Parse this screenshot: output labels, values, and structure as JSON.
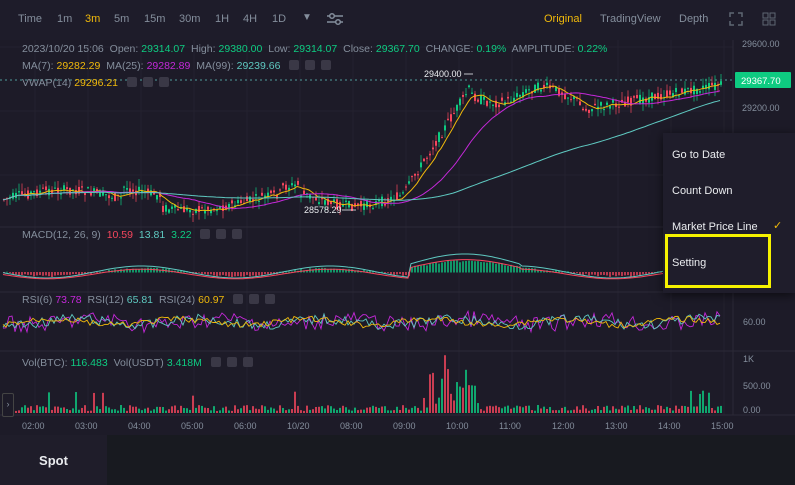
{
  "toolbar": {
    "timeframes": [
      "Time",
      "1m",
      "3m",
      "5m",
      "15m",
      "30m",
      "1H",
      "4H",
      "1D"
    ],
    "active_timeframe": "3m",
    "views": [
      "Original",
      "TradingView",
      "Depth"
    ],
    "active_view": "Original"
  },
  "ohlc": {
    "datetime": "2023/10/20 15:06",
    "open_label": "Open:",
    "open": "29314.07",
    "high_label": "High:",
    "high": "29380.00",
    "low_label": "Low:",
    "low": "29314.07",
    "close_label": "Close:",
    "close": "29367.70",
    "change_label": "CHANGE:",
    "change": "0.19%",
    "amplitude_label": "AMPLITUDE:",
    "amplitude": "0.22%"
  },
  "ma": {
    "ma7_label": "MA(7):",
    "ma7": "29282.29",
    "ma25_label": "MA(25):",
    "ma25": "29282.89",
    "ma99_label": "MA(99):",
    "ma99": "29239.66"
  },
  "vwap": {
    "label": "VWAP(14)",
    "value": "29296.21"
  },
  "macd": {
    "label": "MACD(12, 26, 9)",
    "v1": "10.59",
    "v2": "13.81",
    "v3": "3.22"
  },
  "rsi": {
    "l6": "RSI(6)",
    "v6": "73.78",
    "l12": "RSI(12)",
    "v12": "65.81",
    "l24": "RSI(24)",
    "v24": "60.97"
  },
  "vol": {
    "btc_label": "Vol(BTC):",
    "btc": "116.483",
    "usdt_label": "Vol(USDT)",
    "usdt": "3.418M"
  },
  "price_axis": {
    "ticks": [
      "29600.00",
      "29200.00"
    ],
    "current": "29367.70"
  },
  "annotations": {
    "high_mark": "29400.00",
    "low_mark": "28578.29"
  },
  "rsi_axis": {
    "tick": "60.00"
  },
  "vol_axis": {
    "ticks": [
      "1K",
      "500.00",
      "0.00"
    ]
  },
  "time_axis": {
    "ticks": [
      "02:00",
      "03:00",
      "04:00",
      "05:00",
      "06:00",
      "10/20",
      "08:00",
      "09:00",
      "10:00",
      "11:00",
      "12:00",
      "13:00",
      "14:00",
      "15:00"
    ]
  },
  "menu": {
    "items": [
      "Go to Date",
      "Count Down",
      "Market Price Line",
      "Setting"
    ]
  },
  "bottom": {
    "tab": "Spot"
  },
  "colors": {
    "up": "#0ecb81",
    "down": "#f6465d",
    "accent": "#f0b90b",
    "highlight": "#f5f200"
  }
}
